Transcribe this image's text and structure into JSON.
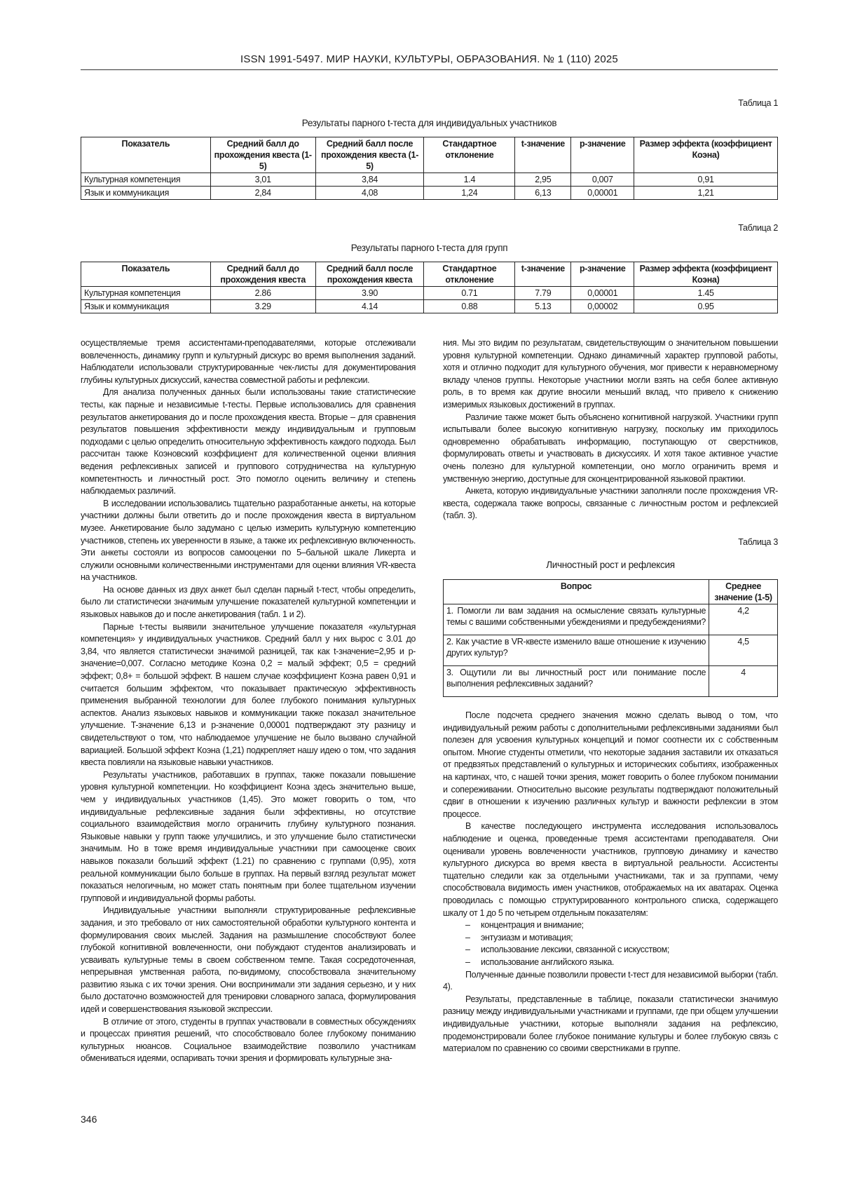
{
  "header": {
    "title": "ISSN 1991-5497. МИР НАУКИ, КУЛЬТУРЫ, ОБРАЗОВАНИЯ. № 1 (110) 2025"
  },
  "table1": {
    "label": "Таблица 1",
    "title": "Результаты парного t-теста для индивидуальных участников",
    "columns": [
      "Показатель",
      "Средний балл до прохождения квеста (1-5)",
      "Средний балл после прохождения квеста (1-5)",
      "Стандартное отклонение",
      "t-значение",
      "p-значение",
      "Размер эффекта (коэффициент Коэна)"
    ],
    "rows": [
      [
        "Культурная компетенция",
        "3,01",
        "3,84",
        "1.4",
        "2,95",
        "0,007",
        "0,91"
      ],
      [
        "Язык и коммуникация",
        "2,84",
        "4,08",
        "1,24",
        "6,13",
        "0,00001",
        "1,21"
      ]
    ]
  },
  "table2": {
    "label": "Таблица 2",
    "title": "Результаты парного t-теста для групп",
    "columns": [
      "Показатель",
      "Средний балл до прохождения квеста",
      "Средний балл после прохождения квеста",
      "Стандартное отклонение",
      "t-значение",
      "p-значение",
      "Размер эффекта (коэффициент Коэна)"
    ],
    "rows": [
      [
        "Культурная компетенция",
        "2.86",
        "3.90",
        "0.71",
        "7.79",
        "0,00001",
        "1.45"
      ],
      [
        "Язык и коммуникация",
        "3.29",
        "4.14",
        "0.88",
        "5.13",
        "0,00002",
        "0.95"
      ]
    ]
  },
  "left_column": {
    "paragraphs": [
      "осуществляемые тремя ассистентами-преподавателями, которые отслеживали вовлеченность, динамику групп и культурный дискурс во время выполнения заданий. Наблюдатели использовали структурированные чек-листы для документирования глубины культурных дискуссий, качества совместной работы и рефлексии.",
      "Для анализа полученных данных были использованы такие статистические тесты, как парные и независимые t-тесты. Первые использовались для сравнения результатов анкетирования до и после прохождения квеста. Вторые – для сравнения результатов повышения эффективности между индивидуальным и групповым подходами с целью определить относительную эффективность каждого подхода. Был рассчитан также Коэновский коэффициент для количественной оценки влияния ведения рефлексивных записей и группового сотрудничества на культурную компетентность и личностный рост. Это помогло оценить величину и степень наблюдаемых различий.",
      "В исследовании использовались тщательно разработанные анкеты, на которые участники должны были ответить до и после прохождения квеста в виртуальном музее. Анкетирование было задумано с целью измерить культурную компетенцию участников, степень их уверенности в языке, а также их рефлексивную включенность. Эти анкеты состояли из вопросов самооценки по 5–бальной шкале Ликерта и служили основными количественными инструментами для оценки влияния VR-квеста на участников.",
      "На основе данных из двух анкет был сделан парный t-тест, чтобы определить, было ли статистически значимым улучшение показателей культурной компетенции и языковых навыков до и после анкетирования (табл. 1 и 2).",
      "Парные t-тесты выявили значительное улучшение показателя «культурная компетенция» у индивидуальных участников. Средний балл у них вырос с 3.01 до 3,84, что является статистически значимой разницей, так как t-значение=2,95 и p-значение=0,007. Согласно методике Коэна 0,2 = малый эффект; 0,5 = средний эффект; 0,8+ = большой эффект. В нашем случае коэффициент Коэна равен 0,91 и считается большим эффектом, что показывает практическую эффективность применения выбранной технологии для более глубокого понимания культурных аспектов. Анализ языковых навыков и коммуникации также показал значительное улучшение. T-значение 6,13 и p-значение 0,00001 подтверждают эту разницу и свидетельствуют о том, что наблюдаемое улучшение не было вызвано случайной вариацией. Большой эффект Коэна (1,21) подкрепляет нашу идею о том, что задания квеста повлияли на языковые навыки участников.",
      "Результаты участников, работавших в группах, также показали повышение уровня культурной компетенции. Но коэффициент Коэна здесь значительно выше, чем у индивидуальных участников (1,45). Это может говорить о том, что индивидуальные рефлексивные задания были эффективны, но отсутствие социального взаимодействия могло ограничить глубину культурного познания. Языковые навыки у групп также улучшились, и это улучшение было статистически значимым. Но в тоже время индивидуальные участники при самооценке своих навыков показали больший эффект (1.21) по сравнению с группами (0,95), хотя реальной коммуникации было больше в группах. На первый взгляд результат может показаться нелогичным, но может стать понятным при более тщательном изучении групповой и индивидуальной формы работы.",
      "Индивидуальные участники выполняли структурированные рефлексивные задания, и это требовало от них самостоятельной обработки культурного контента и формулирования своих мыслей. Задания на размышление способствуют более глубокой когнитивной вовлеченности, они побуждают студентов анализировать и усваивать культурные темы в своем собственном темпе. Такая сосредоточенная, непрерывная умственная работа, по-видимому, способствовала значительному развитию языка с их точки зрения. Они воспринимали эти задания серьезно, и у них было достаточно возможностей для тренировки словарного запаса, формулирования идей и совершенствования языковой экспрессии.",
      "В отличие от этого, студенты в группах участвовали в совместных обсуждениях и процессах принятия решений, что способствовало более глубокому пониманию культурных нюансов. Социальное взаимодействие позволило участникам обмениваться идеями, оспаривать точки зрения и формировать культурные зна-"
    ]
  },
  "right_column": {
    "paragraphs_top": [
      "ния. Мы это видим по результатам, свидетельствующим о значительном повышении уровня культурной компетенции. Однако динамичный характер групповой работы, хотя и отлично подходит для культурного обучения, мог привести к неравномерному вкладу членов группы. Некоторые участники могли взять на себя более активную роль, в то время как другие вносили меньший вклад, что привело к снижению измеримых языковых достижений в группах.",
      "Различие также может быть объяснено когнитивной нагрузкой. Участники групп испытывали более высокую когнитивную нагрузку, поскольку им приходилось одновременно обрабатывать информацию, поступающую от сверстников, формулировать ответы и участвовать в дискуссиях. И хотя такое активное участие очень полезно для культурной компетенции, оно могло ограничить время и умственную энергию, доступные для сконцентрированной языковой практики.",
      "Анкета, которую индивидуальные участники заполняли после прохождения VR-квеста, содержала также вопросы, связанные с личностным ростом и рефлексией (табл. 3)."
    ],
    "table3": {
      "label": "Таблица 3",
      "title": "Личностный рост и рефлексия",
      "columns": [
        "Вопрос",
        "Среднее значение (1-5)"
      ],
      "rows": [
        [
          "1. Помогли ли вам задания на осмысление связать культурные темы с вашими собственными убеждениями и предубеждениями?",
          "4,2"
        ],
        [
          "2. Как участие в VR-квесте изменило ваше отношение к изучению других культур?",
          "4,5"
        ],
        [
          "3. Ощутили ли вы личностный рост или понимание после выполнения рефлексивных заданий?",
          "4"
        ]
      ]
    },
    "paragraphs_middle": [
      "После подсчета среднего значения можно сделать вывод о том, что индивидуальный режим работы с дополнительными рефлексивными заданиями был полезен для усвоения культурных концепций и помог соотнести их с собственным опытом. Многие студенты отметили, что некоторые задания заставили их отказаться от предвзятых представлений о культурных и исторических событиях, изображенных на картинах, что, с нашей точки зрения, может говорить о более глубоком понимании и сопереживании. Относительно высокие результаты подтверждают положительный сдвиг в отношении к изучению различных культур и важности рефлексии в этом процессе.",
      "В качестве последующего инструмента исследования использовалось наблюдение и оценка, проведенные тремя ассистентами преподавателя. Они оценивали уровень вовлеченности участников, групповую динамику и качество культурного дискурса во время квеста в виртуальной реальности. Ассистенты тщательно следили как за отдельными участниками, так и за группами, чему способствовала видимость имен участников, отображаемых на их аватарах. Оценка проводилась с помощью структурированного контрольного списка, содержащего шкалу от 1 до 5 по четырем отдельным показателям:"
    ],
    "list": [
      "концентрация и внимание;",
      "энтузиазм и мотивация;",
      "использование лексики, связанной с искусством;",
      "использование английского языка."
    ],
    "paragraphs_bottom": [
      "Полученные данные позволили провести t-тест для независимой выборки (табл. 4).",
      "Результаты, представленные в таблице, показали статистически значимую разницу между индивидуальными участниками и группами, где при общем улучшении индивидуальные участники, которые выполняли задания на рефлексию, продемонстрировали более глубокое понимание культуры и более глубокую связь с материалом по сравнению со своими сверстниками в группе."
    ]
  },
  "page_number": "346"
}
